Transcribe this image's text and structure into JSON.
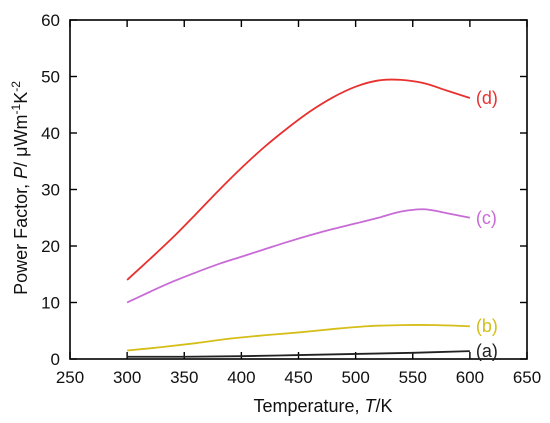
{
  "chart_data": {
    "type": "line",
    "xlabel": {
      "prefix": "Temperature, ",
      "var": "T",
      "unit": "/K"
    },
    "ylabel": {
      "prefix": "Power Factor, ",
      "var": "P",
      "unit": "/ μWm",
      "sup1": "-1",
      "mid": "K",
      "sup2": "-2"
    },
    "xlim": [
      250,
      650
    ],
    "ylim": [
      0,
      60
    ],
    "xticks": [
      250,
      300,
      350,
      400,
      450,
      500,
      550,
      600,
      650
    ],
    "yticks": [
      0,
      10,
      20,
      30,
      40,
      50,
      60
    ],
    "grid": false,
    "series": [
      {
        "name": "(d)",
        "color": "#e8312f",
        "x": [
          300,
          320,
          340,
          360,
          380,
          400,
          420,
          440,
          460,
          480,
          500,
          520,
          540,
          560,
          580,
          600
        ],
        "y": [
          14.0,
          17.7,
          21.5,
          25.6,
          29.8,
          33.8,
          37.5,
          40.8,
          43.8,
          46.3,
          48.2,
          49.3,
          49.4,
          48.8,
          47.5,
          46.2
        ]
      },
      {
        "name": "(c)",
        "color": "#c86bd6",
        "x": [
          300,
          320,
          340,
          360,
          380,
          400,
          420,
          440,
          460,
          480,
          500,
          520,
          540,
          560,
          580,
          600
        ],
        "y": [
          10.0,
          11.9,
          13.7,
          15.3,
          16.8,
          18.1,
          19.4,
          20.7,
          21.9,
          23.0,
          24.0,
          25.0,
          26.1,
          26.5,
          25.8,
          25.0
        ]
      },
      {
        "name": "(b)",
        "color": "#d4be17",
        "x": [
          300,
          330,
          360,
          390,
          420,
          450,
          480,
          510,
          540,
          570,
          600
        ],
        "y": [
          1.5,
          2.1,
          2.8,
          3.6,
          4.2,
          4.7,
          5.3,
          5.8,
          6.0,
          6.0,
          5.8
        ]
      },
      {
        "name": "(a)",
        "color": "#222222",
        "x": [
          300,
          350,
          400,
          450,
          500,
          550,
          600
        ],
        "y": [
          0.4,
          0.4,
          0.5,
          0.7,
          0.9,
          1.1,
          1.4
        ]
      }
    ]
  }
}
